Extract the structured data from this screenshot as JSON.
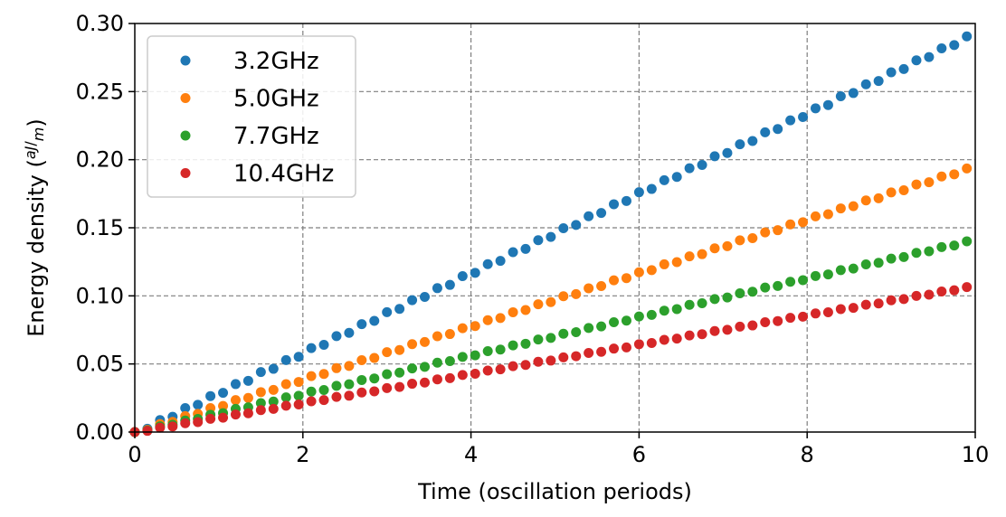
{
  "chart_data": {
    "type": "scatter",
    "xlabel": "Time (oscillation periods)",
    "ylabel_prefix": "Energy density (",
    "ylabel_unit_num": "aJ",
    "ylabel_unit_den": "m",
    "ylabel_suffix": ")",
    "xlim": [
      0,
      10
    ],
    "ylim": [
      0,
      0.3
    ],
    "xticks": [
      "0",
      "2",
      "4",
      "6",
      "8",
      "10"
    ],
    "yticks": [
      "0.00",
      "0.05",
      "0.10",
      "0.15",
      "0.20",
      "0.25",
      "0.30"
    ],
    "grid": true,
    "legend_position": "top-left",
    "x_step": 0.15,
    "series": [
      {
        "name": "3.2GHz",
        "color": "#1f77b4",
        "slope": 0.02935
      },
      {
        "name": "5.0GHz",
        "color": "#ff7f0e",
        "slope": 0.01955
      },
      {
        "name": "7.7GHz",
        "color": "#2ca02c",
        "slope": 0.01415
      },
      {
        "name": "10.4GHz",
        "color": "#d62728",
        "slope": 0.01075
      }
    ]
  }
}
